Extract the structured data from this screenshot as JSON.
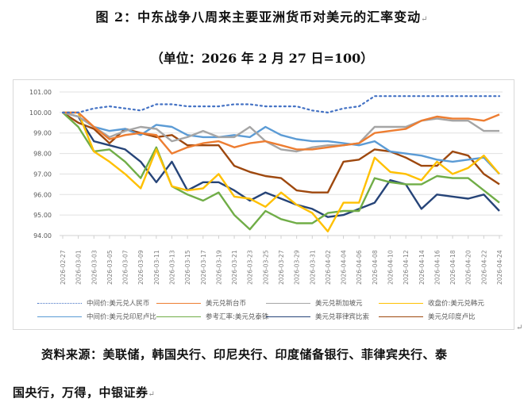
{
  "page": {
    "title": "图 2：中东战争八周来主要亚洲货币对美元的汇率变动",
    "subtitle": "（单位：2026 年 2 月 27 日=100）",
    "source_line1": "资料来源：美联储，韩国央行、印尼央行、印度储备银行、菲律宾央行、泰",
    "source_line2": "国央行，万得，中银证券",
    "return_mark": "↵"
  },
  "chart_data": {
    "type": "line",
    "title": "中东战争八周来主要亚洲货币对美元的汇率变动",
    "subtitle": "单位：2026 年 2 月 27 日=100",
    "xlabel": "",
    "ylabel": "",
    "ylim": [
      94,
      101
    ],
    "yticks": [
      "94.00",
      "95.00",
      "96.00",
      "97.00",
      "98.00",
      "99.00",
      "100.00",
      "101.00"
    ],
    "grid": true,
    "legend_position": "bottom",
    "x": [
      "2026-02-27",
      "2026-03-01",
      "2026-03-03",
      "2026-03-05",
      "2026-03-07",
      "2026-03-09",
      "2026-03-11",
      "2026-03-13",
      "2026-03-15",
      "2026-03-17",
      "2026-03-19",
      "2026-03-21",
      "2026-03-23",
      "2026-03-25",
      "2026-03-27",
      "2026-03-29",
      "2026-03-31",
      "2026-04-02",
      "2026-04-04",
      "2026-04-06",
      "2026-04-08",
      "2026-04-10",
      "2026-04-12",
      "2026-04-14",
      "2026-04-16",
      "2026-04-18",
      "2026-04-20",
      "2026-04-22",
      "2026-04-24"
    ],
    "series": [
      {
        "name": "中间价:美元兑人民币",
        "color": "#4472c4",
        "style": "dotted",
        "values": [
          100.0,
          100.0,
          100.2,
          100.3,
          100.2,
          100.1,
          100.4,
          100.4,
          100.3,
          100.3,
          100.3,
          100.4,
          100.4,
          100.3,
          100.3,
          100.3,
          100.1,
          100.0,
          100.2,
          100.3,
          100.8,
          100.8,
          100.8,
          100.8,
          100.8,
          100.8,
          100.8,
          100.8,
          100.8
        ]
      },
      {
        "name": "美元兑新台币",
        "color": "#ed7d31",
        "style": "solid",
        "values": [
          100.0,
          100.0,
          99.3,
          98.7,
          98.9,
          99.0,
          98.9,
          98.0,
          98.3,
          98.5,
          98.6,
          98.3,
          98.5,
          98.6,
          98.4,
          98.2,
          98.2,
          98.3,
          98.4,
          98.5,
          99.0,
          99.1,
          99.2,
          99.6,
          99.8,
          99.7,
          99.7,
          99.6,
          99.9
        ]
      },
      {
        "name": "美元兑新加坡元",
        "color": "#a5a5a5",
        "style": "solid",
        "values": [
          100.0,
          99.8,
          99.3,
          98.8,
          99.1,
          99.3,
          99.2,
          98.6,
          98.8,
          99.1,
          98.8,
          98.8,
          99.3,
          98.6,
          98.2,
          98.1,
          98.3,
          98.4,
          98.4,
          98.5,
          99.3,
          99.3,
          99.3,
          99.6,
          99.7,
          99.6,
          99.6,
          99.1,
          99.1
        ]
      },
      {
        "name": "收盘价:美元兑韩元",
        "color": "#ffc000",
        "style": "solid",
        "values": [
          100.0,
          100.0,
          98.1,
          97.6,
          97.0,
          96.3,
          98.2,
          96.4,
          96.2,
          96.3,
          97.0,
          95.9,
          95.8,
          95.4,
          96.1,
          95.5,
          95.1,
          94.2,
          95.6,
          95.6,
          97.8,
          97.1,
          97.0,
          96.7,
          97.6,
          97.0,
          97.3,
          97.9,
          97.0
        ]
      },
      {
        "name": "中间价:美元兑印尼卢比",
        "color": "#5b9bd5",
        "style": "solid",
        "values": [
          100.0,
          99.8,
          99.3,
          99.1,
          99.2,
          98.9,
          99.4,
          99.3,
          98.9,
          98.8,
          98.8,
          98.9,
          98.8,
          99.3,
          98.9,
          98.7,
          98.6,
          98.6,
          98.5,
          98.4,
          98.6,
          98.1,
          98.0,
          97.9,
          97.7,
          97.6,
          97.7,
          97.8,
          97.0
        ]
      },
      {
        "name": "参考汇率:美元兑泰铢",
        "color": "#70ad47",
        "style": "solid",
        "values": [
          100.0,
          99.3,
          98.1,
          98.2,
          97.6,
          96.8,
          98.3,
          96.4,
          96.0,
          95.7,
          96.1,
          95.0,
          94.3,
          95.2,
          94.8,
          94.6,
          94.6,
          95.1,
          95.2,
          95.2,
          96.8,
          96.6,
          96.5,
          96.5,
          96.9,
          96.8,
          96.8,
          96.2,
          95.6
        ]
      },
      {
        "name": "美元兑菲律宾比索",
        "color": "#264478",
        "style": "solid",
        "values": [
          100.0,
          99.8,
          98.6,
          98.4,
          98.2,
          97.6,
          96.6,
          97.6,
          96.2,
          96.6,
          96.6,
          96.2,
          95.7,
          96.1,
          95.8,
          95.5,
          95.3,
          94.9,
          95.0,
          95.3,
          95.6,
          96.7,
          96.5,
          95.3,
          96.0,
          95.9,
          95.8,
          96.0,
          95.2
        ]
      },
      {
        "name": "美元兑印度卢比",
        "color": "#9e480e",
        "style": "solid",
        "values": [
          100.0,
          99.5,
          99.2,
          98.5,
          99.2,
          99.0,
          98.8,
          98.9,
          98.4,
          98.4,
          98.4,
          97.4,
          97.1,
          96.9,
          96.8,
          96.2,
          96.1,
          96.1,
          97.6,
          97.7,
          98.2,
          98.1,
          97.8,
          97.4,
          97.4,
          98.1,
          97.9,
          97.0,
          96.5
        ]
      }
    ]
  }
}
